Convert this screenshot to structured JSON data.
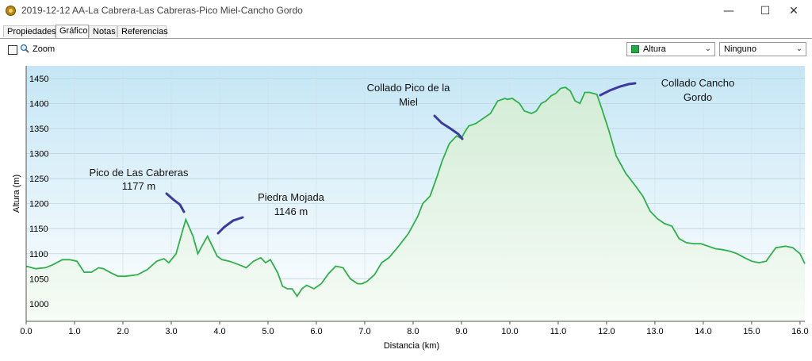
{
  "window": {
    "title": "2019-12-12 AA-La Cabrera-Las Cabreras-Pico Miel-Cancho Gordo"
  },
  "tabs": [
    {
      "label": "Propiedades",
      "active": false
    },
    {
      "label": "Gráfico",
      "active": true
    },
    {
      "label": "Notas",
      "active": false
    },
    {
      "label": "Referencias",
      "active": false
    }
  ],
  "toolbar": {
    "zoom_label": "Zoom",
    "zoom_checked": false,
    "series_select": {
      "value": "Altura",
      "color": "#22aa44"
    },
    "secondary_select": {
      "value": "Ninguno"
    }
  },
  "chart_data": {
    "type": "area",
    "xlabel": "Distancia  (km)",
    "ylabel": "Altura (m)",
    "xlim": [
      0,
      16.1
    ],
    "ylim": [
      965,
      1475
    ],
    "xticks": [
      "0.0",
      "1.0",
      "2.0",
      "3.0",
      "4.0",
      "5.0",
      "6.0",
      "7.0",
      "8.0",
      "9.0",
      "10.0",
      "11.0",
      "12.0",
      "13.0",
      "14.0",
      "15.0",
      "16.0"
    ],
    "yticks": [
      "1000",
      "1050",
      "1100",
      "1150",
      "1200",
      "1250",
      "1300",
      "1350",
      "1400",
      "1450"
    ],
    "line_color": "#2fb14a",
    "grid": true,
    "series": [
      {
        "x": [
          0.0,
          0.2,
          0.4,
          0.55,
          0.75,
          0.9,
          1.05,
          1.2,
          1.35,
          1.5,
          1.6,
          1.75,
          1.9,
          2.05,
          2.3,
          2.5,
          2.7,
          2.85,
          2.95,
          3.1,
          3.2,
          3.3,
          3.45,
          3.55,
          3.65,
          3.75,
          3.85,
          3.95,
          4.05,
          4.2,
          4.4,
          4.55,
          4.7,
          4.85,
          4.95,
          5.05,
          5.2,
          5.3,
          5.4,
          5.5,
          5.6,
          5.7,
          5.8,
          5.95,
          6.1,
          6.25,
          6.4,
          6.55,
          6.7,
          6.85,
          6.95,
          7.05,
          7.2,
          7.35,
          7.5,
          7.7,
          7.9,
          8.1,
          8.2,
          8.35,
          8.5,
          8.6,
          8.75,
          8.9,
          9.0,
          9.05,
          9.15,
          9.3,
          9.45,
          9.6,
          9.75,
          9.9,
          9.95,
          10.05,
          10.2,
          10.3,
          10.45,
          10.55,
          10.65,
          10.75,
          10.85,
          10.95,
          11.05,
          11.15,
          11.25,
          11.35,
          11.45,
          11.55,
          11.65,
          11.8,
          11.9,
          12.05,
          12.2,
          12.4,
          12.6,
          12.75,
          12.9,
          13.05,
          13.2,
          13.35,
          13.5,
          13.65,
          13.8,
          13.95,
          14.1,
          14.25,
          14.4,
          14.55,
          14.7,
          14.85,
          15.0,
          15.15,
          15.3,
          15.5,
          15.7,
          15.85,
          16.0,
          16.1
        ],
        "y": [
          1075,
          1070,
          1072,
          1078,
          1088,
          1088,
          1085,
          1063,
          1063,
          1072,
          1070,
          1062,
          1055,
          1055,
          1058,
          1068,
          1085,
          1090,
          1082,
          1100,
          1135,
          1168,
          1135,
          1100,
          1118,
          1135,
          1115,
          1095,
          1088,
          1085,
          1078,
          1072,
          1085,
          1092,
          1082,
          1088,
          1062,
          1035,
          1030,
          1030,
          1015,
          1030,
          1037,
          1030,
          1040,
          1060,
          1075,
          1072,
          1050,
          1040,
          1040,
          1045,
          1058,
          1082,
          1092,
          1115,
          1140,
          1175,
          1200,
          1215,
          1255,
          1285,
          1320,
          1335,
          1330,
          1340,
          1355,
          1360,
          1370,
          1380,
          1405,
          1410,
          1408,
          1410,
          1400,
          1385,
          1380,
          1385,
          1400,
          1405,
          1415,
          1420,
          1430,
          1432,
          1425,
          1405,
          1400,
          1422,
          1422,
          1418,
          1390,
          1345,
          1295,
          1260,
          1235,
          1215,
          1185,
          1170,
          1160,
          1155,
          1130,
          1122,
          1120,
          1120,
          1115,
          1110,
          1108,
          1105,
          1100,
          1092,
          1085,
          1082,
          1085,
          1112,
          1115,
          1112,
          1100,
          1080
        ]
      }
    ],
    "annotations": [
      {
        "label": "Pico de Las Cabreras",
        "sub": "1177 m"
      },
      {
        "label": "Piedra Mojada",
        "sub": "1146 m"
      },
      {
        "label": "Collado Pico de la",
        "sub": "Miel"
      },
      {
        "label": "Collado Cancho",
        "sub": "Gordo"
      }
    ],
    "marker_color": "#3a3aa0"
  }
}
